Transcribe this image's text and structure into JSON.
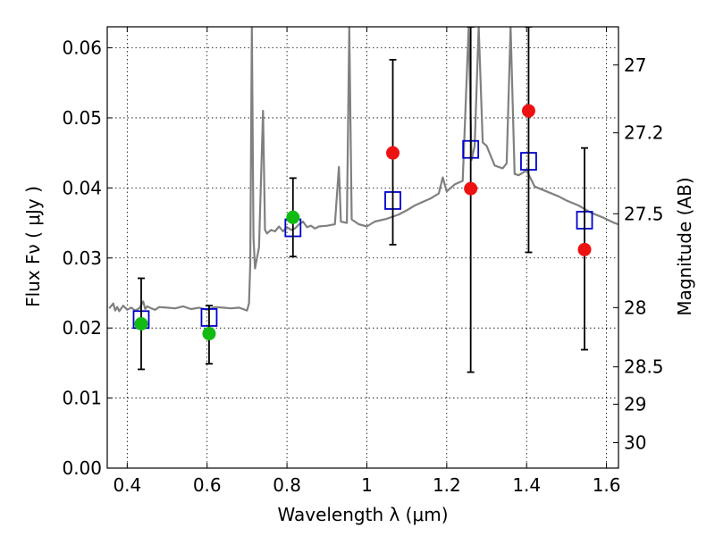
{
  "chart_data": {
    "type": "scatter",
    "xlabel": "Wavelength  λ (μm)",
    "ylabel": "Flux  Fν  ( μJy )",
    "ylabel_right": "Magnitude (AB)",
    "xlim": [
      0.35,
      1.63
    ],
    "ylim": [
      0.0,
      0.063
    ],
    "grid": true,
    "x_ticks": [
      0.4,
      0.6,
      0.8,
      1.0,
      1.2,
      1.4,
      1.6
    ],
    "x_tick_labels": [
      "0.4",
      "0.6",
      "0.8",
      "1",
      "1.2",
      "1.4",
      "1.6"
    ],
    "y_ticks": [
      0.0,
      0.01,
      0.02,
      0.03,
      0.04,
      0.05,
      0.06
    ],
    "y_tick_labels": [
      "0.00",
      "0.01",
      "0.02",
      "0.03",
      "0.04",
      "0.05",
      "0.06"
    ],
    "right_ticks": [
      {
        "label": "27",
        "mag": 27.0
      },
      {
        "label": "27.2",
        "mag": 27.2
      },
      {
        "label": "27.5",
        "mag": 27.5
      },
      {
        "label": "28",
        "mag": 28.0
      },
      {
        "label": "28.5",
        "mag": 28.5
      },
      {
        "label": "29",
        "mag": 29.0
      },
      {
        "label": "30",
        "mag": 30.0
      }
    ],
    "colors": {
      "model": "#808080",
      "red_points": "#ee1111",
      "green_points": "#11bb11",
      "model_photometry": "#0000cc",
      "errorbars": "#000000"
    },
    "series": [
      {
        "kind": "line",
        "points": [
          [
            0.355,
            0.0228
          ],
          [
            0.365,
            0.0235
          ],
          [
            0.37,
            0.0225
          ],
          [
            0.375,
            0.023
          ],
          [
            0.38,
            0.0224
          ],
          [
            0.39,
            0.0232
          ],
          [
            0.4,
            0.0226
          ],
          [
            0.41,
            0.0229
          ],
          [
            0.42,
            0.0225
          ],
          [
            0.43,
            0.0228
          ],
          [
            0.44,
            0.0238
          ],
          [
            0.445,
            0.0227
          ],
          [
            0.45,
            0.0231
          ],
          [
            0.46,
            0.0228
          ],
          [
            0.47,
            0.0226
          ],
          [
            0.48,
            0.023
          ],
          [
            0.5,
            0.0229
          ],
          [
            0.52,
            0.0228
          ],
          [
            0.54,
            0.0231
          ],
          [
            0.56,
            0.0227
          ],
          [
            0.58,
            0.0229
          ],
          [
            0.6,
            0.0226
          ],
          [
            0.62,
            0.023
          ],
          [
            0.64,
            0.0229
          ],
          [
            0.66,
            0.0228
          ],
          [
            0.68,
            0.0229
          ],
          [
            0.7,
            0.0225
          ],
          [
            0.705,
            0.0235
          ],
          [
            0.708,
            0.029
          ],
          [
            0.712,
            0.063
          ],
          [
            0.716,
            0.033
          ],
          [
            0.72,
            0.0285
          ],
          [
            0.73,
            0.0315
          ],
          [
            0.74,
            0.051
          ],
          [
            0.745,
            0.034
          ],
          [
            0.75,
            0.0335
          ],
          [
            0.76,
            0.034
          ],
          [
            0.77,
            0.0338
          ],
          [
            0.78,
            0.0345
          ],
          [
            0.79,
            0.0338
          ],
          [
            0.8,
            0.0344
          ],
          [
            0.81,
            0.034
          ],
          [
            0.82,
            0.0342
          ],
          [
            0.83,
            0.0348
          ],
          [
            0.84,
            0.0352
          ],
          [
            0.85,
            0.0344
          ],
          [
            0.86,
            0.0346
          ],
          [
            0.87,
            0.0342
          ],
          [
            0.88,
            0.0345
          ],
          [
            0.9,
            0.0346
          ],
          [
            0.92,
            0.0348
          ],
          [
            0.93,
            0.043
          ],
          [
            0.935,
            0.0352
          ],
          [
            0.95,
            0.035
          ],
          [
            0.956,
            0.063
          ],
          [
            0.962,
            0.0355
          ],
          [
            0.98,
            0.0348
          ],
          [
            1.0,
            0.0345
          ],
          [
            1.02,
            0.0352
          ],
          [
            1.05,
            0.0356
          ],
          [
            1.08,
            0.0362
          ],
          [
            1.1,
            0.0368
          ],
          [
            1.12,
            0.0375
          ],
          [
            1.14,
            0.038
          ],
          [
            1.16,
            0.0385
          ],
          [
            1.18,
            0.0392
          ],
          [
            1.19,
            0.0415
          ],
          [
            1.2,
            0.0395
          ],
          [
            1.22,
            0.0405
          ],
          [
            1.24,
            0.041
          ],
          [
            1.255,
            0.063
          ],
          [
            1.262,
            0.044
          ],
          [
            1.27,
            0.046
          ],
          [
            1.28,
            0.063
          ],
          [
            1.29,
            0.0465
          ],
          [
            1.3,
            0.046
          ],
          [
            1.32,
            0.0432
          ],
          [
            1.34,
            0.0428
          ],
          [
            1.35,
            0.0435
          ],
          [
            1.36,
            0.063
          ],
          [
            1.37,
            0.042
          ],
          [
            1.38,
            0.0418
          ],
          [
            1.4,
            0.0425
          ],
          [
            1.42,
            0.0402
          ],
          [
            1.45,
            0.0395
          ],
          [
            1.48,
            0.0388
          ],
          [
            1.5,
            0.0382
          ],
          [
            1.53,
            0.0375
          ],
          [
            1.56,
            0.0365
          ],
          [
            1.59,
            0.0358
          ],
          [
            1.62,
            0.035
          ],
          [
            1.63,
            0.0348
          ]
        ]
      },
      {
        "kind": "points",
        "marker": "circle",
        "color": "#ee1111",
        "points": [
          [
            1.065,
            0.045
          ],
          [
            1.26,
            0.0399
          ],
          [
            1.405,
            0.051
          ],
          [
            1.545,
            0.0312
          ]
        ]
      },
      {
        "kind": "points",
        "marker": "circle",
        "color": "#11bb11",
        "points": [
          [
            0.435,
            0.0206
          ],
          [
            0.605,
            0.0192
          ],
          [
            0.815,
            0.0358
          ]
        ]
      },
      {
        "kind": "points",
        "marker": "square",
        "color": "#0000cc",
        "points": [
          [
            0.435,
            0.0212
          ],
          [
            0.605,
            0.0215
          ],
          [
            0.815,
            0.0343
          ],
          [
            1.065,
            0.0382
          ],
          [
            1.26,
            0.0455
          ],
          [
            1.405,
            0.0438
          ],
          [
            1.545,
            0.0354
          ]
        ]
      },
      {
        "kind": "errorbars",
        "color": "#000000",
        "bars": [
          {
            "x": 0.435,
            "low": 0.0141,
            "high": 0.0271
          },
          {
            "x": 0.605,
            "low": 0.0149,
            "high": 0.0232
          },
          {
            "x": 0.815,
            "low": 0.0302,
            "high": 0.0414
          },
          {
            "x": 1.065,
            "low": 0.0319,
            "high": 0.0583
          },
          {
            "x": 1.26,
            "low": 0.0137,
            "high": 0.063
          },
          {
            "x": 1.405,
            "low": 0.0308,
            "high": 0.063
          },
          {
            "x": 1.545,
            "low": 0.0169,
            "high": 0.0457
          }
        ]
      }
    ]
  }
}
